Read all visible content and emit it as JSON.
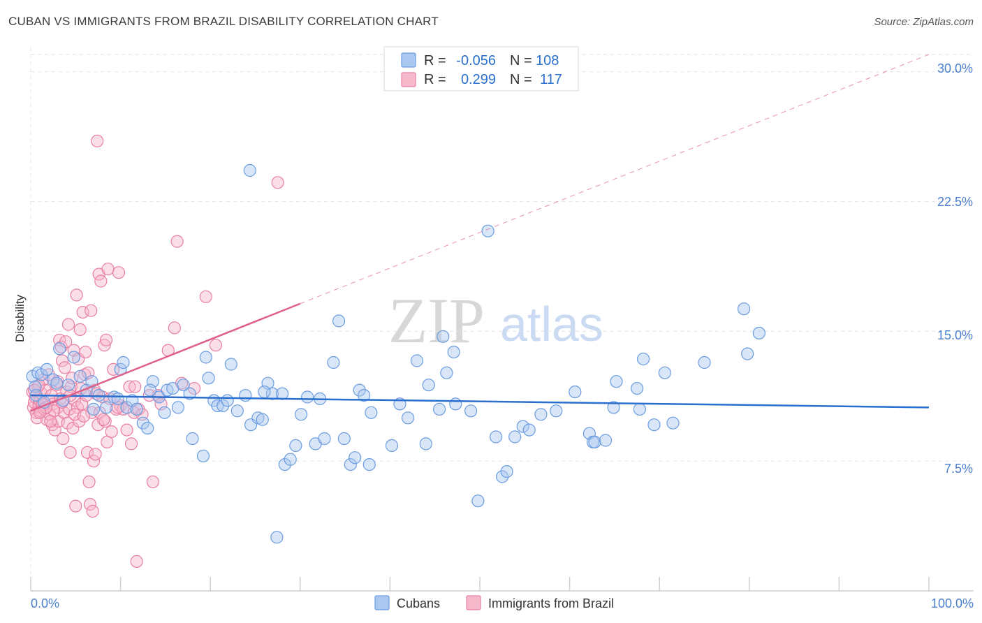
{
  "title": "CUBAN VS IMMIGRANTS FROM BRAZIL DISABILITY CORRELATION CHART",
  "source": "Source: ZipAtlas.com",
  "watermark": {
    "zip": "ZIP",
    "atlas": "atlas"
  },
  "colors": {
    "cubans": "#6a9ce0",
    "cubans_fill": "#aac8f0",
    "cubans_line": "#2a6fcf",
    "brazil": "#e87fa2",
    "brazil_fill": "#f6b8cb",
    "brazil_line": "#e0608a",
    "axis_text": "#4a7fd0",
    "grid": "#e2e2e2"
  },
  "legend": {
    "rows": [
      {
        "r_label": "R =",
        "r_value": "-0.056",
        "n_label": "N =",
        "n_value": "108"
      },
      {
        "r_label": "R =",
        "r_value": "0.299",
        "n_label": "N =",
        "n_value": "117"
      }
    ]
  },
  "bottom_legend": [
    {
      "label": "Cubans"
    },
    {
      "label": "Immigrants from Brazil"
    }
  ],
  "chart_data": {
    "type": "scatter",
    "title": "CUBAN VS IMMIGRANTS FROM BRAZIL DISABILITY CORRELATION CHART",
    "xlabel": "",
    "ylabel": "Disability",
    "xlim": [
      0,
      100
    ],
    "ylim": [
      0,
      31
    ],
    "x_tick_labels": [
      "0.0%",
      "100.0%"
    ],
    "y_ticks": [
      7.5,
      15.0,
      22.5,
      30.0
    ],
    "y_tick_labels": [
      "7.5%",
      "15.0%",
      "22.5%",
      "30.0%"
    ],
    "grid": "horizontal dashed",
    "legend_position": "top-center",
    "series": [
      {
        "name": "Cubans",
        "color": "#6a9ce0",
        "trend": {
          "x0": 0,
          "y0": 11.3,
          "x1": 100,
          "y1": 10.6,
          "r": -0.056,
          "n": 108
        },
        "points": [
          [
            0.2,
            12.4
          ],
          [
            0.5,
            11.8
          ],
          [
            0.8,
            12.6
          ],
          [
            1.2,
            12.5
          ],
          [
            1.8,
            12.8
          ],
          [
            2.5,
            12.2
          ],
          [
            3.2,
            14.0
          ],
          [
            3.6,
            11.0
          ],
          [
            4.2,
            11.9
          ],
          [
            4.8,
            13.5
          ],
          [
            5.5,
            12.4
          ],
          [
            6.2,
            11.6
          ],
          [
            7.0,
            10.5
          ],
          [
            7.6,
            11.3
          ],
          [
            8.4,
            10.6
          ],
          [
            9.3,
            11.2
          ],
          [
            10.0,
            12.8
          ],
          [
            10.3,
            13.2
          ],
          [
            10.7,
            10.6
          ],
          [
            11.3,
            11.0
          ],
          [
            11.8,
            10.5
          ],
          [
            12.5,
            9.7
          ],
          [
            13.0,
            9.4
          ],
          [
            13.6,
            12.1
          ],
          [
            14.3,
            11.2
          ],
          [
            15.2,
            11.6
          ],
          [
            15.8,
            11.7
          ],
          [
            16.4,
            10.6
          ],
          [
            17.0,
            11.9
          ],
          [
            17.7,
            11.4
          ],
          [
            18.0,
            8.8
          ],
          [
            19.2,
            7.8
          ],
          [
            19.5,
            13.5
          ],
          [
            19.8,
            12.3
          ],
          [
            20.4,
            11.0
          ],
          [
            20.8,
            10.7
          ],
          [
            21.4,
            10.7
          ],
          [
            21.9,
            11.0
          ],
          [
            22.3,
            13.1
          ],
          [
            23.9,
            11.3
          ],
          [
            24.4,
            24.3
          ],
          [
            24.5,
            9.6
          ],
          [
            25.3,
            10.0
          ],
          [
            25.8,
            9.9
          ],
          [
            26.4,
            12.0
          ],
          [
            26.9,
            11.4
          ],
          [
            27.4,
            3.1
          ],
          [
            28.0,
            11.4
          ],
          [
            28.3,
            7.3
          ],
          [
            28.9,
            7.6
          ],
          [
            29.5,
            8.4
          ],
          [
            30.1,
            10.2
          ],
          [
            30.8,
            11.2
          ],
          [
            31.7,
            8.5
          ],
          [
            32.2,
            11.1
          ],
          [
            32.7,
            8.8
          ],
          [
            33.7,
            13.2
          ],
          [
            34.3,
            15.6
          ],
          [
            34.9,
            8.8
          ],
          [
            35.6,
            7.3
          ],
          [
            36.1,
            7.7
          ],
          [
            36.6,
            11.6
          ],
          [
            37.7,
            7.3
          ],
          [
            37.9,
            10.3
          ],
          [
            40.2,
            8.4
          ],
          [
            42.0,
            10.0
          ],
          [
            43.0,
            13.3
          ],
          [
            44.0,
            8.5
          ],
          [
            44.3,
            11.9
          ],
          [
            45.5,
            10.5
          ],
          [
            45.9,
            14.7
          ],
          [
            46.3,
            12.6
          ],
          [
            47.1,
            13.8
          ],
          [
            47.3,
            10.8
          ],
          [
            49.0,
            10.4
          ],
          [
            49.8,
            5.2
          ],
          [
            50.9,
            20.8
          ],
          [
            51.8,
            8.9
          ],
          [
            52.5,
            6.6
          ],
          [
            53.0,
            6.9
          ],
          [
            53.9,
            8.9
          ],
          [
            54.8,
            9.5
          ],
          [
            55.5,
            9.3
          ],
          [
            56.8,
            10.2
          ],
          [
            58.5,
            10.4
          ],
          [
            60.6,
            11.5
          ],
          [
            62.2,
            9.1
          ],
          [
            62.6,
            8.6
          ],
          [
            62.8,
            8.6
          ],
          [
            64.0,
            8.7
          ],
          [
            64.9,
            10.6
          ],
          [
            65.2,
            12.1
          ],
          [
            67.5,
            11.7
          ],
          [
            67.8,
            10.5
          ],
          [
            68.2,
            13.4
          ],
          [
            69.4,
            9.6
          ],
          [
            70.6,
            12.6
          ],
          [
            71.5,
            9.7
          ],
          [
            75.0,
            13.2
          ],
          [
            79.4,
            16.3
          ],
          [
            81.1,
            14.9
          ],
          [
            79.8,
            13.7
          ],
          [
            0.6,
            11.3
          ],
          [
            1.5,
            10.9
          ],
          [
            2.9,
            12.0
          ],
          [
            6.8,
            12.1
          ],
          [
            9.7,
            11.1
          ],
          [
            13.3,
            11.6
          ],
          [
            14.9,
            10.3
          ],
          [
            37.1,
            11.3
          ],
          [
            41.1,
            10.8
          ],
          [
            26.0,
            11.5
          ],
          [
            23.0,
            10.4
          ]
        ]
      },
      {
        "name": "Immigrants from Brazil",
        "color": "#e87fa2",
        "trend": {
          "x0": 0,
          "y0": 10.4,
          "x1": 30,
          "y1": 16.6,
          "dashed_to": {
            "x": 100,
            "y": 31.0
          },
          "r": 0.299,
          "n": 117
        },
        "points": [
          [
            0.2,
            11.5
          ],
          [
            0.3,
            10.6
          ],
          [
            0.4,
            10.9
          ],
          [
            0.5,
            11.2
          ],
          [
            0.6,
            10.3
          ],
          [
            0.7,
            10.0
          ],
          [
            0.8,
            11.8
          ],
          [
            0.9,
            10.7
          ],
          [
            1.0,
            11.0
          ],
          [
            1.1,
            10.4
          ],
          [
            1.2,
            11.4
          ],
          [
            1.3,
            10.8
          ],
          [
            1.4,
            12.2
          ],
          [
            1.5,
            10.5
          ],
          [
            1.6,
            11.6
          ],
          [
            1.8,
            9.9
          ],
          [
            2.0,
            12.5
          ],
          [
            2.1,
            10.2
          ],
          [
            2.3,
            11.3
          ],
          [
            2.4,
            9.6
          ],
          [
            2.5,
            10.8
          ],
          [
            2.7,
            9.3
          ],
          [
            2.9,
            11.9
          ],
          [
            3.0,
            10.6
          ],
          [
            3.1,
            9.8
          ],
          [
            3.2,
            14.5
          ],
          [
            3.3,
            11.1
          ],
          [
            3.4,
            14.1
          ],
          [
            3.5,
            13.3
          ],
          [
            3.6,
            8.8
          ],
          [
            3.7,
            10.3
          ],
          [
            3.8,
            12.9
          ],
          [
            3.9,
            14.4
          ],
          [
            4.0,
            11.5
          ],
          [
            4.1,
            9.7
          ],
          [
            4.2,
            15.4
          ],
          [
            4.3,
            10.5
          ],
          [
            4.4,
            8.0
          ],
          [
            4.5,
            11.8
          ],
          [
            4.6,
            12.3
          ],
          [
            4.7,
            9.4
          ],
          [
            4.8,
            13.9
          ],
          [
            4.9,
            11.0
          ],
          [
            5.0,
            4.9
          ],
          [
            5.1,
            17.1
          ],
          [
            5.2,
            10.6
          ],
          [
            5.3,
            13.4
          ],
          [
            5.4,
            9.8
          ],
          [
            5.5,
            15.1
          ],
          [
            5.6,
            11.7
          ],
          [
            5.7,
            10.8
          ],
          [
            5.8,
            16.1
          ],
          [
            6.0,
            12.5
          ],
          [
            6.1,
            13.8
          ],
          [
            6.2,
            11.3
          ],
          [
            6.3,
            8.0
          ],
          [
            6.5,
            6.3
          ],
          [
            6.6,
            5.0
          ],
          [
            6.7,
            16.2
          ],
          [
            6.8,
            10.3
          ],
          [
            6.9,
            4.6
          ],
          [
            7.0,
            7.5
          ],
          [
            7.1,
            11.6
          ],
          [
            7.2,
            7.9
          ],
          [
            7.4,
            26.0
          ],
          [
            7.5,
            9.6
          ],
          [
            7.6,
            18.3
          ],
          [
            7.7,
            10.3
          ],
          [
            7.8,
            17.9
          ],
          [
            8.0,
            11.2
          ],
          [
            8.2,
            14.2
          ],
          [
            8.3,
            9.8
          ],
          [
            8.4,
            14.5
          ],
          [
            8.5,
            8.6
          ],
          [
            8.6,
            18.6
          ],
          [
            8.8,
            11.1
          ],
          [
            9.0,
            9.2
          ],
          [
            9.2,
            12.8
          ],
          [
            9.5,
            10.5
          ],
          [
            9.8,
            18.4
          ],
          [
            10.0,
            10.7
          ],
          [
            10.3,
            10.5
          ],
          [
            10.7,
            9.3
          ],
          [
            11.0,
            11.8
          ],
          [
            11.2,
            8.5
          ],
          [
            11.5,
            10.3
          ],
          [
            11.8,
            1.7
          ],
          [
            12.0,
            10.5
          ],
          [
            13.2,
            11.3
          ],
          [
            13.6,
            6.3
          ],
          [
            14.2,
            11.3
          ],
          [
            14.5,
            10.8
          ],
          [
            15.3,
            13.9
          ],
          [
            16.0,
            15.2
          ],
          [
            16.3,
            20.2
          ],
          [
            16.8,
            12.0
          ],
          [
            18.2,
            11.7
          ],
          [
            19.5,
            17.0
          ],
          [
            20.6,
            14.2
          ],
          [
            27.5,
            23.6
          ],
          [
            11.6,
            11.8
          ],
          [
            9.7,
            10.6
          ],
          [
            4.9,
            10.2
          ],
          [
            2.6,
            10.4
          ],
          [
            0.9,
            11.9
          ],
          [
            1.7,
            10.6
          ],
          [
            3.0,
            12.1
          ],
          [
            6.4,
            12.6
          ],
          [
            8.1,
            9.9
          ],
          [
            12.4,
            10.2
          ],
          [
            5.9,
            10.1
          ],
          [
            7.3,
            11.4
          ],
          [
            2.2,
            9.8
          ],
          [
            1.0,
            10.3
          ],
          [
            0.4,
            11.6
          ],
          [
            3.5,
            10.9
          ],
          [
            4.4,
            11.3
          ]
        ]
      }
    ]
  }
}
